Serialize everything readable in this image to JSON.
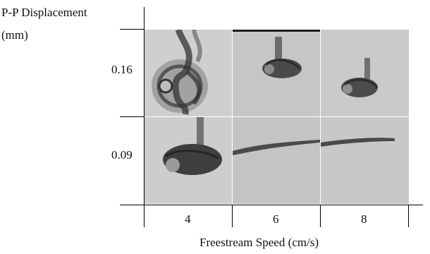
{
  "y_axis": {
    "title_line1": "P-P Displacement",
    "title_line2": "(mm)",
    "ticks": [
      "0.16",
      "0.09"
    ]
  },
  "x_axis": {
    "title": "Freestream Speed (cm/s)",
    "ticks": [
      "4",
      "6",
      "8"
    ]
  },
  "grid": {
    "rows": [
      "0.16",
      "0.09"
    ],
    "cols": [
      "4",
      "6",
      "8"
    ],
    "cells": [
      {
        "row": "0.16",
        "col": "4",
        "pattern": "turbulent-vortex-ring"
      },
      {
        "row": "0.16",
        "col": "6",
        "pattern": "curled-vortex"
      },
      {
        "row": "0.16",
        "col": "8",
        "pattern": "curled-vortex"
      },
      {
        "row": "0.09",
        "col": "4",
        "pattern": "curled-vortex"
      },
      {
        "row": "0.09",
        "col": "6",
        "pattern": "thin-streak"
      },
      {
        "row": "0.09",
        "col": "8",
        "pattern": "thin-streak"
      }
    ]
  },
  "colors": {
    "photo_bg": "#c8c8c8",
    "dye": "#3c3c3c",
    "axis": "#000000"
  }
}
